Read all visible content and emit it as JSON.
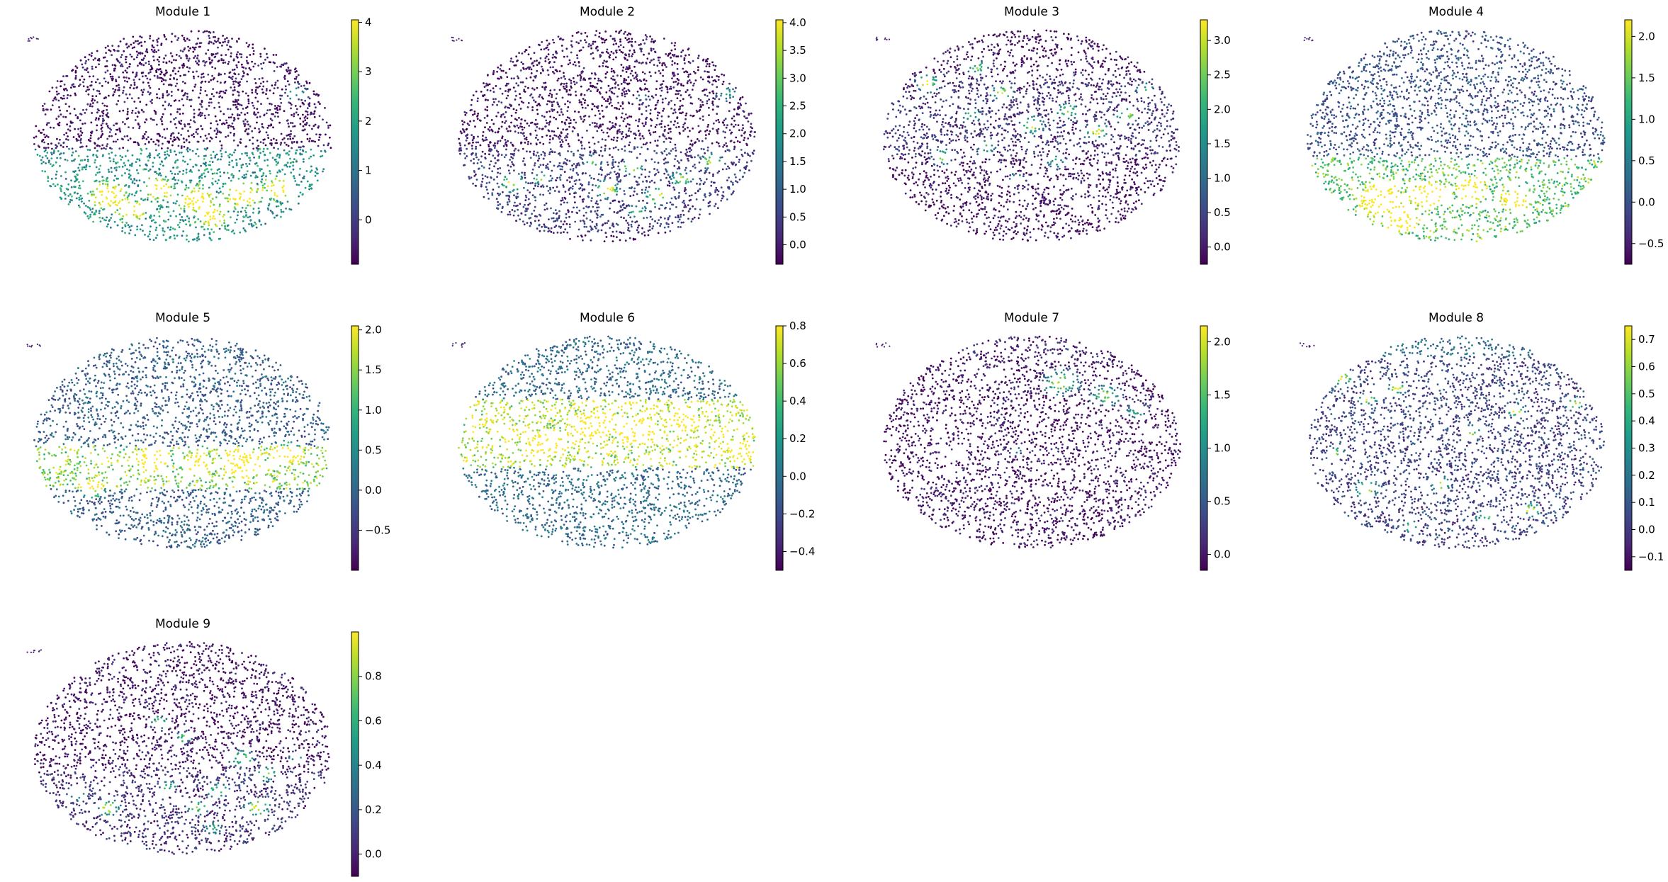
{
  "colors": {
    "colormap": "viridis",
    "viridis_stops": [
      "#440154",
      "#482878",
      "#3e4989",
      "#31688e",
      "#26828e",
      "#1f9e89",
      "#35b779",
      "#6ece58",
      "#b5de2b",
      "#fde725"
    ]
  },
  "chart_data": [
    {
      "type": "scatter",
      "title": "Module 1",
      "colorbar_range": [
        -0.9,
        4.05
      ],
      "colorbar_ticks": [
        {
          "value": 0,
          "label": "0"
        },
        {
          "value": 1,
          "label": "1"
        },
        {
          "value": 2,
          "label": "2"
        },
        {
          "value": 3,
          "label": "3"
        },
        {
          "value": 4,
          "label": "4"
        }
      ],
      "base_level": 0.05,
      "band": {
        "level": 0.55,
        "y0": 0.56,
        "y1": 1.0
      },
      "hotspots": [
        [
          0.25,
          0.78,
          0.06,
          0.9
        ],
        [
          0.42,
          0.75,
          0.05,
          0.85
        ],
        [
          0.55,
          0.8,
          0.06,
          0.8
        ],
        [
          0.7,
          0.78,
          0.06,
          0.85
        ],
        [
          0.82,
          0.75,
          0.05,
          0.8
        ],
        [
          0.88,
          0.3,
          0.04,
          0.55
        ],
        [
          0.33,
          0.85,
          0.05,
          0.75
        ],
        [
          0.6,
          0.88,
          0.05,
          0.7
        ]
      ]
    },
    {
      "type": "scatter",
      "title": "Module 2",
      "colorbar_range": [
        -0.35,
        4.05
      ],
      "colorbar_ticks": [
        {
          "value": 0,
          "label": "0.0"
        },
        {
          "value": 0.5,
          "label": "0.5"
        },
        {
          "value": 1,
          "label": "1.0"
        },
        {
          "value": 1.5,
          "label": "1.5"
        },
        {
          "value": 2,
          "label": "2.0"
        },
        {
          "value": 2.5,
          "label": "2.5"
        },
        {
          "value": 3,
          "label": "3.0"
        },
        {
          "value": 3.5,
          "label": "3.5"
        },
        {
          "value": 4,
          "label": "4.0"
        }
      ],
      "base_level": 0.05,
      "band": {
        "level": 0.15,
        "y0": 0.55,
        "y1": 0.95
      },
      "hotspots": [
        [
          0.18,
          0.72,
          0.04,
          0.85
        ],
        [
          0.28,
          0.7,
          0.03,
          0.7
        ],
        [
          0.5,
          0.75,
          0.04,
          0.9
        ],
        [
          0.58,
          0.65,
          0.035,
          0.8
        ],
        [
          0.67,
          0.78,
          0.04,
          0.85
        ],
        [
          0.75,
          0.7,
          0.035,
          0.75
        ],
        [
          0.85,
          0.62,
          0.035,
          0.7
        ],
        [
          0.9,
          0.3,
          0.035,
          0.6
        ],
        [
          0.6,
          0.85,
          0.03,
          0.6
        ],
        [
          0.45,
          0.62,
          0.03,
          0.55
        ],
        [
          0.62,
          0.32,
          0.025,
          0.45
        ]
      ]
    },
    {
      "type": "scatter",
      "title": "Module 3",
      "colorbar_range": [
        -0.25,
        3.3
      ],
      "colorbar_ticks": [
        {
          "value": 0,
          "label": "0.0"
        },
        {
          "value": 0.5,
          "label": "0.5"
        },
        {
          "value": 1,
          "label": "1.0"
        },
        {
          "value": 1.5,
          "label": "1.5"
        },
        {
          "value": 2,
          "label": "2.0"
        },
        {
          "value": 2.5,
          "label": "2.5"
        },
        {
          "value": 3,
          "label": "3.0"
        }
      ],
      "base_level": 0.05,
      "band": {
        "level": 0.1,
        "y0": 0.2,
        "y1": 0.6
      },
      "hotspots": [
        [
          0.15,
          0.25,
          0.04,
          0.85
        ],
        [
          0.32,
          0.18,
          0.035,
          0.75
        ],
        [
          0.4,
          0.3,
          0.035,
          0.9
        ],
        [
          0.5,
          0.45,
          0.04,
          0.8
        ],
        [
          0.62,
          0.38,
          0.035,
          0.75
        ],
        [
          0.72,
          0.48,
          0.04,
          0.85
        ],
        [
          0.82,
          0.4,
          0.035,
          0.8
        ],
        [
          0.2,
          0.6,
          0.04,
          0.7
        ],
        [
          0.35,
          0.55,
          0.035,
          0.65
        ],
        [
          0.58,
          0.62,
          0.035,
          0.6
        ],
        [
          0.88,
          0.28,
          0.03,
          0.55
        ],
        [
          0.45,
          0.7,
          0.03,
          0.5
        ],
        [
          0.3,
          0.4,
          0.03,
          0.6
        ]
      ]
    },
    {
      "type": "scatter",
      "title": "Module 4",
      "colorbar_range": [
        -0.75,
        2.2
      ],
      "colorbar_ticks": [
        {
          "value": -0.5,
          "label": "−0.5"
        },
        {
          "value": 0,
          "label": "0.0"
        },
        {
          "value": 0.5,
          "label": "0.5"
        },
        {
          "value": 1,
          "label": "1.0"
        },
        {
          "value": 1.5,
          "label": "1.5"
        },
        {
          "value": 2,
          "label": "2.0"
        }
      ],
      "base_level": 0.25,
      "band": {
        "level": 0.55,
        "y0": 0.6,
        "y1": 1.0
      },
      "hotspots": [
        [
          0.25,
          0.8,
          0.07,
          0.9
        ],
        [
          0.4,
          0.78,
          0.06,
          0.8
        ],
        [
          0.55,
          0.75,
          0.05,
          0.75
        ],
        [
          0.7,
          0.8,
          0.05,
          0.65
        ],
        [
          0.32,
          0.9,
          0.05,
          0.85
        ]
      ]
    },
    {
      "type": "scatter",
      "title": "Module 5",
      "colorbar_range": [
        -1.0,
        2.05
      ],
      "colorbar_ticks": [
        {
          "value": -0.5,
          "label": "−0.5"
        },
        {
          "value": 0,
          "label": "0.0"
        },
        {
          "value": 0.5,
          "label": "0.5"
        },
        {
          "value": 1,
          "label": "1.0"
        },
        {
          "value": 1.5,
          "label": "1.5"
        },
        {
          "value": 2,
          "label": "2.0"
        }
      ],
      "base_level": 0.3,
      "band": {
        "level": 0.6,
        "y0": 0.52,
        "y1": 0.72
      },
      "hotspots": [
        [
          0.7,
          0.6,
          0.06,
          0.9
        ],
        [
          0.85,
          0.55,
          0.05,
          0.85
        ],
        [
          0.4,
          0.58,
          0.05,
          0.7
        ],
        [
          0.2,
          0.72,
          0.04,
          0.7
        ],
        [
          0.55,
          0.6,
          0.04,
          0.75
        ]
      ]
    },
    {
      "type": "scatter",
      "title": "Module 6",
      "colorbar_range": [
        -0.5,
        0.8
      ],
      "colorbar_ticks": [
        {
          "value": -0.4,
          "label": "−0.4"
        },
        {
          "value": -0.2,
          "label": "−0.2"
        },
        {
          "value": 0,
          "label": "0.0"
        },
        {
          "value": 0.2,
          "label": "0.2"
        },
        {
          "value": 0.4,
          "label": "0.4"
        },
        {
          "value": 0.6,
          "label": "0.6"
        },
        {
          "value": 0.8,
          "label": "0.8"
        }
      ],
      "base_level": 0.35,
      "band": {
        "level": 0.65,
        "y0": 0.3,
        "y1": 0.62
      },
      "hotspots": [
        [
          0.45,
          0.42,
          0.06,
          0.85
        ],
        [
          0.6,
          0.45,
          0.06,
          0.8
        ],
        [
          0.75,
          0.4,
          0.05,
          0.75
        ],
        [
          0.3,
          0.5,
          0.05,
          0.7
        ],
        [
          0.95,
          0.55,
          0.04,
          0.8
        ]
      ]
    },
    {
      "type": "scatter",
      "title": "Module 7",
      "colorbar_range": [
        -0.15,
        2.15
      ],
      "colorbar_ticks": [
        {
          "value": 0,
          "label": "0.0"
        },
        {
          "value": 0.5,
          "label": "0.5"
        },
        {
          "value": 1,
          "label": "1.0"
        },
        {
          "value": 1.5,
          "label": "1.5"
        },
        {
          "value": 2,
          "label": "2.0"
        }
      ],
      "base_level": 0.05,
      "band": {
        "level": 0.05,
        "y0": 0.0,
        "y1": 0.1
      },
      "hotspots": [
        [
          0.6,
          0.22,
          0.06,
          0.9
        ],
        [
          0.75,
          0.28,
          0.05,
          0.8
        ],
        [
          0.85,
          0.35,
          0.04,
          0.6
        ],
        [
          0.45,
          0.55,
          0.03,
          0.3
        ]
      ]
    },
    {
      "type": "scatter",
      "title": "Module 8",
      "colorbar_range": [
        -0.15,
        0.75
      ],
      "colorbar_ticks": [
        {
          "value": -0.1,
          "label": "−0.1"
        },
        {
          "value": 0,
          "label": "0.0"
        },
        {
          "value": 0.1,
          "label": "0.1"
        },
        {
          "value": 0.2,
          "label": "0.2"
        },
        {
          "value": 0.3,
          "label": "0.3"
        },
        {
          "value": 0.4,
          "label": "0.4"
        },
        {
          "value": 0.5,
          "label": "0.5"
        },
        {
          "value": 0.6,
          "label": "0.6"
        },
        {
          "value": 0.7,
          "label": "0.7"
        }
      ],
      "base_level": 0.2,
      "band": {
        "level": 0.2,
        "y0": 0.0,
        "y1": 0.1
      },
      "hotspots": [
        [
          0.12,
          0.2,
          0.03,
          0.85
        ],
        [
          0.2,
          0.3,
          0.03,
          0.75
        ],
        [
          0.3,
          0.25,
          0.03,
          0.8
        ],
        [
          0.7,
          0.35,
          0.03,
          0.9
        ],
        [
          0.9,
          0.32,
          0.03,
          0.8
        ],
        [
          0.55,
          0.45,
          0.03,
          0.65
        ],
        [
          0.2,
          0.72,
          0.04,
          0.75
        ],
        [
          0.45,
          0.7,
          0.035,
          0.7
        ],
        [
          0.6,
          0.85,
          0.03,
          0.6
        ],
        [
          0.75,
          0.82,
          0.03,
          0.85
        ],
        [
          0.35,
          0.9,
          0.03,
          0.55
        ],
        [
          0.1,
          0.55,
          0.025,
          0.6
        ]
      ]
    },
    {
      "type": "scatter",
      "title": "Module 9",
      "colorbar_range": [
        -0.1,
        1.0
      ],
      "colorbar_ticks": [
        {
          "value": 0,
          "label": "0.0"
        },
        {
          "value": 0.2,
          "label": "0.2"
        },
        {
          "value": 0.4,
          "label": "0.4"
        },
        {
          "value": 0.6,
          "label": "0.6"
        },
        {
          "value": 0.8,
          "label": "0.8"
        }
      ],
      "base_level": 0.05,
      "band": {
        "level": 0.1,
        "y0": 0.6,
        "y1": 1.0
      },
      "hotspots": [
        [
          0.42,
          0.38,
          0.03,
          0.85
        ],
        [
          0.5,
          0.45,
          0.03,
          0.7
        ],
        [
          0.7,
          0.55,
          0.04,
          0.85
        ],
        [
          0.78,
          0.62,
          0.035,
          0.8
        ],
        [
          0.62,
          0.7,
          0.035,
          0.75
        ],
        [
          0.75,
          0.78,
          0.04,
          0.9
        ],
        [
          0.55,
          0.78,
          0.035,
          0.7
        ],
        [
          0.25,
          0.78,
          0.04,
          0.8
        ],
        [
          0.45,
          0.68,
          0.03,
          0.6
        ],
        [
          0.15,
          0.72,
          0.03,
          0.6
        ],
        [
          0.88,
          0.55,
          0.03,
          0.55
        ],
        [
          0.6,
          0.88,
          0.03,
          0.6
        ]
      ]
    }
  ]
}
